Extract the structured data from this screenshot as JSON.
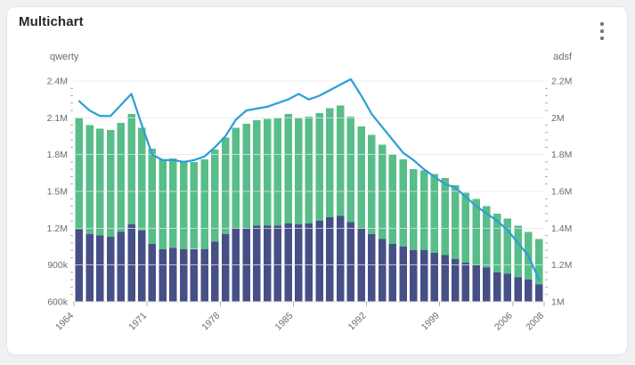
{
  "header": {
    "title": "Multichart"
  },
  "icons": {
    "menu": "kebab-menu-icon"
  },
  "colors": {
    "navy_bar": "#474F87",
    "green_bar": "#58BD89",
    "blue_line": "#2E9FD8",
    "gridline": "#e3e6eb",
    "tick_mark": "#a8aeb6",
    "axis_text": "#646d76",
    "title_text": "#24272c",
    "card_bg": "#ffffff",
    "page_bg": "#f0f1f3",
    "card_border": "#e4e7ea",
    "menu_dots": "#6e7a86"
  },
  "chart_data": {
    "type": "bar",
    "subtype": "stacked-bar-with-line-dual-axis",
    "values_unit": "millions",
    "categories": [
      1964,
      1965,
      1966,
      1967,
      1968,
      1969,
      1970,
      1971,
      1972,
      1973,
      1974,
      1975,
      1976,
      1977,
      1978,
      1979,
      1980,
      1981,
      1982,
      1983,
      1984,
      1985,
      1986,
      1987,
      1988,
      1989,
      1990,
      1991,
      1992,
      1993,
      1994,
      1995,
      1996,
      1997,
      1998,
      1999,
      2000,
      2001,
      2002,
      2003,
      2004,
      2005,
      2006,
      2007,
      2008
    ],
    "series": [
      {
        "name": "navy-bar-stack",
        "type": "bar",
        "axis": "left",
        "color_key": "navy_bar",
        "values": [
          1.19,
          1.15,
          1.14,
          1.13,
          1.17,
          1.23,
          1.18,
          1.07,
          1.03,
          1.04,
          1.03,
          1.03,
          1.03,
          1.09,
          1.15,
          1.2,
          1.2,
          1.22,
          1.22,
          1.22,
          1.24,
          1.23,
          1.24,
          1.26,
          1.29,
          1.3,
          1.25,
          1.2,
          1.15,
          1.11,
          1.07,
          1.05,
          1.02,
          1.02,
          1.0,
          0.98,
          0.95,
          0.92,
          0.9,
          0.88,
          0.84,
          0.83,
          0.8,
          0.78,
          0.74
        ]
      },
      {
        "name": "green-bar-stack-total",
        "type": "bar",
        "axis": "left",
        "color_key": "green_bar",
        "values": [
          2.1,
          2.04,
          2.01,
          2.0,
          2.06,
          2.13,
          2.02,
          1.85,
          1.76,
          1.77,
          1.75,
          1.74,
          1.76,
          1.84,
          1.94,
          2.02,
          2.05,
          2.08,
          2.09,
          2.1,
          2.13,
          2.1,
          2.11,
          2.14,
          2.18,
          2.2,
          2.11,
          2.03,
          1.96,
          1.88,
          1.8,
          1.76,
          1.68,
          1.67,
          1.64,
          1.61,
          1.55,
          1.49,
          1.44,
          1.38,
          1.32,
          1.28,
          1.22,
          1.17,
          1.11
        ]
      },
      {
        "name": "blue-line",
        "type": "line",
        "axis": "right",
        "color_key": "blue_line",
        "values": [
          2.09,
          2.04,
          2.01,
          2.01,
          2.07,
          2.13,
          1.96,
          1.8,
          1.77,
          1.77,
          1.76,
          1.77,
          1.79,
          1.84,
          1.9,
          1.99,
          2.04,
          2.05,
          2.06,
          2.08,
          2.1,
          2.13,
          2.1,
          2.12,
          2.15,
          2.18,
          2.21,
          2.12,
          2.02,
          1.95,
          1.88,
          1.81,
          1.77,
          1.72,
          1.68,
          1.64,
          1.62,
          1.57,
          1.52,
          1.48,
          1.44,
          1.39,
          1.32,
          1.25,
          1.12
        ]
      }
    ],
    "left_axis": {
      "title": "qwerty",
      "range_millions": [
        0.6,
        2.4
      ],
      "tick_labels": [
        "600k",
        "900k",
        "1.2M",
        "1.5M",
        "1.8M",
        "2.1M",
        "2.4M"
      ]
    },
    "right_axis": {
      "title": "adsf",
      "range_millions": [
        1.0,
        2.2
      ],
      "tick_labels": [
        "1M",
        "1.2M",
        "1.4M",
        "1.6M",
        "1.8M",
        "2M",
        "2.2M"
      ]
    },
    "x_axis": {
      "tick_years": [
        1964,
        1971,
        1978,
        1985,
        1992,
        1999,
        2006,
        2008
      ]
    },
    "grid": "horizontal-major",
    "legend": "none"
  }
}
